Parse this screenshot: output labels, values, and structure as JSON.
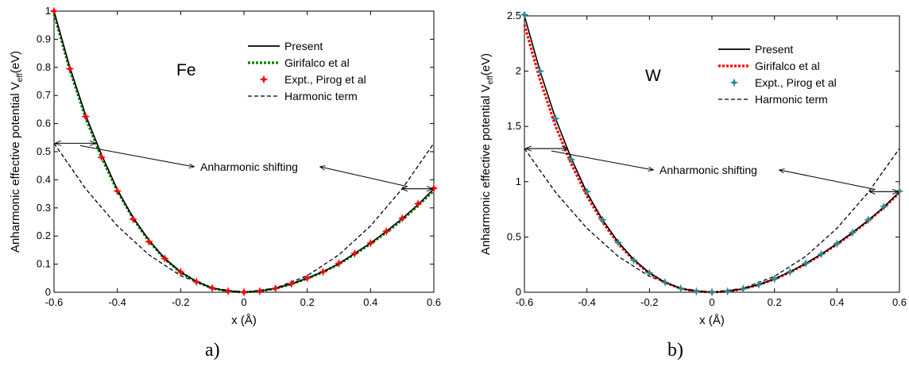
{
  "chart_data": [
    {
      "type": "line",
      "panel_label": "a)",
      "element": "Fe",
      "xlabel": "x (Å)",
      "ylabel": "Anharmonic effective potential",
      "ylabel_symbol": "V",
      "ylabel_subscript": "eff",
      "ylabel_unit": "(eV)",
      "xlim": [
        -0.6,
        0.6
      ],
      "ylim": [
        0,
        1
      ],
      "xticks": [
        "-0.6",
        "-0.4",
        "-0.2",
        "0",
        "0.2",
        "0.4",
        "0.6"
      ],
      "yticks": [
        "0",
        "0.1",
        "0.2",
        "0.3",
        "0.4",
        "0.5",
        "0.6",
        "0.7",
        "0.8",
        "0.9",
        "1"
      ],
      "annotation": "Anharmonic shifting",
      "legend": [
        "Present",
        "Girifalco et al",
        "Expt., Pirog et al",
        "Harmonic term"
      ],
      "colors": {
        "present": "#000000",
        "girifalco": "#008000",
        "expt": "#ff0000",
        "harmonic": "#000000"
      },
      "series": [
        {
          "name": "Present",
          "x": [
            -0.6,
            -0.55,
            -0.5,
            -0.45,
            -0.4,
            -0.35,
            -0.3,
            -0.25,
            -0.2,
            -0.15,
            -0.1,
            -0.05,
            0,
            0.05,
            0.1,
            0.15,
            0.2,
            0.25,
            0.3,
            0.35,
            0.4,
            0.45,
            0.5,
            0.55,
            0.6
          ],
          "y": [
            1.0,
            0.8,
            0.63,
            0.49,
            0.365,
            0.265,
            0.185,
            0.12,
            0.072,
            0.038,
            0.015,
            0.004,
            0,
            0.004,
            0.014,
            0.03,
            0.05,
            0.073,
            0.102,
            0.138,
            0.175,
            0.217,
            0.262,
            0.312,
            0.368
          ]
        },
        {
          "name": "Girifalco et al",
          "x": [
            -0.6,
            -0.55,
            -0.5,
            -0.45,
            -0.4,
            -0.35,
            -0.3,
            -0.25,
            -0.2,
            -0.15,
            -0.1,
            -0.05,
            0,
            0.05,
            0.1,
            0.15,
            0.2,
            0.25,
            0.3,
            0.35,
            0.4,
            0.45,
            0.5,
            0.55,
            0.6
          ],
          "y": [
            0.99,
            0.79,
            0.62,
            0.48,
            0.36,
            0.262,
            0.182,
            0.118,
            0.071,
            0.037,
            0.014,
            0.004,
            0,
            0.004,
            0.013,
            0.029,
            0.049,
            0.072,
            0.1,
            0.135,
            0.172,
            0.213,
            0.258,
            0.308,
            0.362
          ]
        },
        {
          "name": "Expt., Pirog et al",
          "x": [
            -0.6,
            -0.55,
            -0.5,
            -0.45,
            -0.4,
            -0.35,
            -0.3,
            -0.25,
            -0.2,
            -0.15,
            -0.1,
            -0.05,
            0,
            0.05,
            0.1,
            0.15,
            0.2,
            0.25,
            0.3,
            0.35,
            0.4,
            0.45,
            0.5,
            0.55,
            0.6
          ],
          "y": [
            1.0,
            0.795,
            0.625,
            0.48,
            0.36,
            0.26,
            0.18,
            0.12,
            0.072,
            0.037,
            0.015,
            0.004,
            0,
            0.004,
            0.014,
            0.03,
            0.05,
            0.073,
            0.103,
            0.138,
            0.175,
            0.217,
            0.263,
            0.315,
            0.37
          ]
        },
        {
          "name": "Harmonic term",
          "x": [
            -0.6,
            -0.5,
            -0.4,
            -0.3,
            -0.2,
            -0.1,
            0,
            0.1,
            0.2,
            0.3,
            0.4,
            0.5,
            0.6
          ],
          "y": [
            0.53,
            0.368,
            0.236,
            0.133,
            0.059,
            0.015,
            0,
            0.015,
            0.059,
            0.133,
            0.236,
            0.368,
            0.53
          ]
        }
      ]
    },
    {
      "type": "line",
      "panel_label": "b)",
      "element": "W",
      "xlabel": "x (Å)",
      "ylabel": "Anharmonic effective potential",
      "ylabel_symbol": "V",
      "ylabel_subscript": "eff",
      "ylabel_unit": "(eV)",
      "xlim": [
        -0.6,
        0.6
      ],
      "ylim": [
        0,
        2.5
      ],
      "xticks": [
        "-0.6",
        "-0.4",
        "-0.2",
        "0",
        "0.2",
        "0.4",
        "0.6"
      ],
      "yticks": [
        "0",
        "0.5",
        "1",
        "1.5",
        "2",
        "2.5"
      ],
      "annotation": "Anharmonic shifting",
      "legend": [
        "Present",
        "Girifalco et al",
        "Expt., Pirog et al",
        "Harmonic term"
      ],
      "colors": {
        "present": "#000000",
        "girifalco": "#ff0000",
        "expt": "#2a8a8a",
        "harmonic": "#000000"
      },
      "series": [
        {
          "name": "Present",
          "x": [
            -0.6,
            -0.55,
            -0.5,
            -0.45,
            -0.4,
            -0.35,
            -0.3,
            -0.25,
            -0.2,
            -0.15,
            -0.1,
            -0.05,
            0,
            0.05,
            0.1,
            0.15,
            0.2,
            0.25,
            0.3,
            0.35,
            0.4,
            0.45,
            0.5,
            0.55,
            0.6
          ],
          "y": [
            2.5,
            2.0,
            1.57,
            1.21,
            0.9,
            0.655,
            0.455,
            0.295,
            0.175,
            0.09,
            0.035,
            0.008,
            0,
            0.008,
            0.032,
            0.07,
            0.12,
            0.185,
            0.26,
            0.345,
            0.44,
            0.54,
            0.65,
            0.77,
            0.91
          ]
        },
        {
          "name": "Girifalco et al",
          "x": [
            -0.6,
            -0.55,
            -0.5,
            -0.45,
            -0.4,
            -0.35,
            -0.3,
            -0.25,
            -0.2,
            -0.15,
            -0.1,
            -0.05,
            0,
            0.05,
            0.1,
            0.15,
            0.2,
            0.25,
            0.3,
            0.35,
            0.4,
            0.45,
            0.5,
            0.55,
            0.6
          ],
          "y": [
            2.42,
            1.92,
            1.5,
            1.16,
            0.87,
            0.635,
            0.44,
            0.287,
            0.17,
            0.087,
            0.034,
            0.008,
            0,
            0.008,
            0.031,
            0.068,
            0.118,
            0.182,
            0.256,
            0.34,
            0.433,
            0.535,
            0.645,
            0.765,
            0.9
          ]
        },
        {
          "name": "Expt., Pirog et al",
          "x": [
            -0.6,
            -0.55,
            -0.5,
            -0.45,
            -0.4,
            -0.35,
            -0.3,
            -0.25,
            -0.2,
            -0.15,
            -0.1,
            -0.05,
            0,
            0.05,
            0.1,
            0.15,
            0.2,
            0.25,
            0.3,
            0.35,
            0.4,
            0.45,
            0.5,
            0.55,
            0.6
          ],
          "y": [
            2.51,
            2.0,
            1.57,
            1.2,
            0.91,
            0.655,
            0.45,
            0.29,
            0.175,
            0.09,
            0.035,
            0.008,
            0,
            0.008,
            0.032,
            0.07,
            0.12,
            0.185,
            0.262,
            0.345,
            0.44,
            0.54,
            0.655,
            0.775,
            0.915
          ]
        },
        {
          "name": "Harmonic term",
          "x": [
            -0.6,
            -0.5,
            -0.4,
            -0.3,
            -0.2,
            -0.1,
            0,
            0.1,
            0.2,
            0.3,
            0.4,
            0.5,
            0.6
          ],
          "y": [
            1.3,
            0.903,
            0.578,
            0.325,
            0.144,
            0.036,
            0,
            0.036,
            0.144,
            0.325,
            0.578,
            0.903,
            1.3
          ]
        }
      ]
    }
  ]
}
